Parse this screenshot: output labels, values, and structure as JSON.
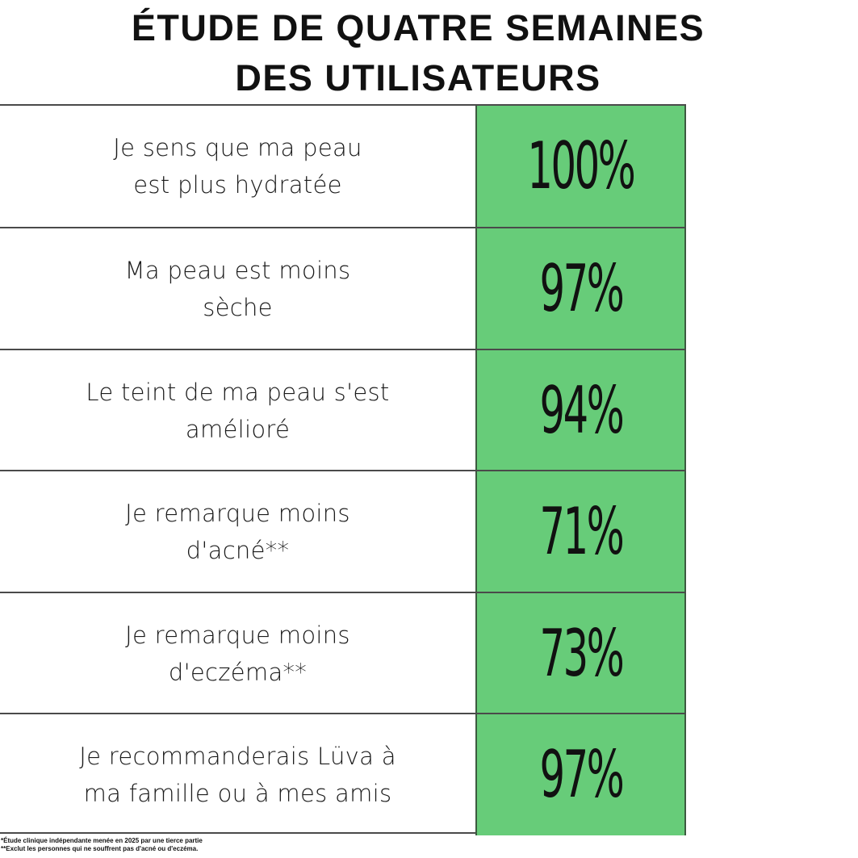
{
  "title": {
    "line1": "ÉTUDE DE QUATRE SEMAINES",
    "line2": "DES UTILISATEURS"
  },
  "rows": [
    {
      "label_line1": "Je sens que ma peau",
      "label_line2": "est plus hydratée",
      "value": "100%"
    },
    {
      "label_line1": "Ma peau est moins",
      "label_line2": "sèche",
      "value": "97%"
    },
    {
      "label_line1": "Le teint de ma peau s'est",
      "label_line2": "amélioré",
      "value": "94%"
    },
    {
      "label_line1": "Je remarque moins",
      "label_line2": "d'acné**",
      "value": "71%"
    },
    {
      "label_line1": "Je remarque moins",
      "label_line2": "d'eczéma**",
      "value": "73%"
    },
    {
      "label_line1": "Je recommanderais Lüva à",
      "label_line2": "ma famille ou à mes amis",
      "value": "97%"
    }
  ],
  "footnotes": {
    "note1": "*Étude clinique indépendante menée en 2025 par une tierce partie",
    "note2": "**Exclut les personnes qui ne souffrent pas d'acné ou d'eczéma."
  },
  "colors": {
    "value_cell_green": "#67cc79",
    "rule": "#4a4a4a",
    "text": "#111111"
  }
}
